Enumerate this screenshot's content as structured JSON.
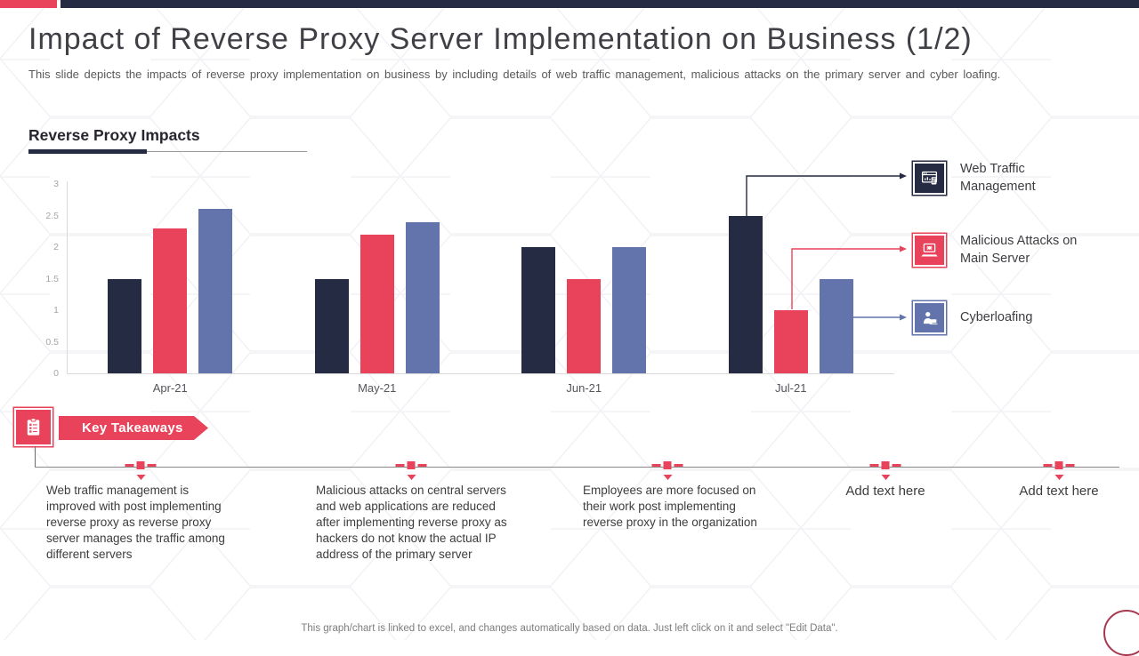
{
  "slide": {
    "title": "Impact of Reverse Proxy Server Implementation on Business (1/2)",
    "subtitle": "This slide depicts the impacts of reverse proxy implementation on business by including details of web traffic management, malicious attacks on the primary server and cyber loafing.",
    "footer_note": "This graph/chart is linked to excel, and changes automatically based on data. Just left click on it and select \"Edit Data\"."
  },
  "colors": {
    "navy": "#252b42",
    "red": "#e8435a",
    "blue": "#6274ab",
    "axis": "#d9d9d9"
  },
  "section": {
    "heading": "Reverse Proxy Impacts"
  },
  "chart_data": {
    "type": "bar",
    "categories": [
      "Apr-21",
      "May-21",
      "Jun-21",
      "Jul-21"
    ],
    "series": [
      {
        "name": "Web Traffic Management",
        "color": "#252b42",
        "icon": "web-traffic-icon",
        "values": [
          1.5,
          1.5,
          2,
          2.5
        ]
      },
      {
        "name": "Malicious Attacks on Main Server",
        "color": "#e8435a",
        "icon": "malicious-attack-icon",
        "values": [
          2.3,
          2.2,
          1.5,
          1
        ]
      },
      {
        "name": "Cyberloafing",
        "color": "#6274ab",
        "icon": "cyberloafing-icon",
        "values": [
          2.6,
          2.4,
          2,
          1.5
        ]
      }
    ],
    "title": "Reverse Proxy Impacts",
    "xlabel": "",
    "ylabel": "",
    "ylim": [
      0,
      3
    ],
    "yticks": [
      0,
      0.5,
      1,
      1.5,
      2,
      2.5,
      3
    ],
    "grid": false,
    "legend_position": "right"
  },
  "takeaways": {
    "icon": "clipboard-icon",
    "banner_label": "Key Takeaways",
    "items": [
      "Web traffic management is improved with post implementing reverse proxy as reverse proxy server manages the traffic among different servers",
      "Malicious attacks on central servers and web applications are reduced after implementing reverse proxy as hackers do not know the actual IP address of the primary server",
      "Employees are more focused on their work post implementing reverse proxy in the organization",
      "Add text here",
      "Add text here"
    ]
  }
}
